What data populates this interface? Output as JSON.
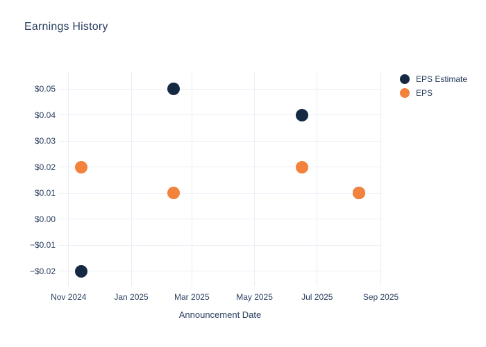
{
  "chart_data": {
    "type": "scatter",
    "title": "Earnings History",
    "xlabel": "Announcement Date",
    "ylabel": "",
    "grid": true,
    "background_color": "#FFFFFF",
    "grid_color": "#E9EDF6",
    "text_color": "#2A3F5F",
    "legend_position": "top-right-outside",
    "x_range": [
      "2024-10-22",
      "2025-09-02"
    ],
    "y_range": [
      -0.0256,
      0.0564
    ],
    "x_ticks": [
      {
        "label": "Nov 2024",
        "date": "2024-11-01"
      },
      {
        "label": "Jan 2025",
        "date": "2025-01-01"
      },
      {
        "label": "Mar 2025",
        "date": "2025-03-01"
      },
      {
        "label": "May 2025",
        "date": "2025-05-01"
      },
      {
        "label": "Jul 2025",
        "date": "2025-07-01"
      },
      {
        "label": "Sep 2025",
        "date": "2025-09-01"
      }
    ],
    "y_ticks": [
      {
        "label": "$0.05",
        "value": 0.05
      },
      {
        "label": "$0.04",
        "value": 0.04
      },
      {
        "label": "$0.03",
        "value": 0.03
      },
      {
        "label": "$0.02",
        "value": 0.02
      },
      {
        "label": "$0.01",
        "value": 0.01
      },
      {
        "label": "$0.00",
        "value": 0.0
      },
      {
        "label": "−$0.01",
        "value": -0.01
      },
      {
        "label": "−$0.02",
        "value": -0.02
      }
    ],
    "series": [
      {
        "name": "EPS Estimate",
        "color": "#152A42",
        "marker_size": 18,
        "points": [
          {
            "date": "2024-11-13",
            "value": -0.02
          },
          {
            "date": "2025-02-11",
            "value": 0.05
          },
          {
            "date": "2025-06-16",
            "value": 0.04
          },
          {
            "date": "2025-08-11",
            "value": 0.01
          }
        ]
      },
      {
        "name": "EPS",
        "color": "#F2823C",
        "marker_size": 18,
        "points": [
          {
            "date": "2024-11-13",
            "value": 0.02
          },
          {
            "date": "2025-02-11",
            "value": 0.01
          },
          {
            "date": "2025-06-16",
            "value": 0.02
          },
          {
            "date": "2025-08-11",
            "value": 0.01
          }
        ]
      }
    ]
  }
}
